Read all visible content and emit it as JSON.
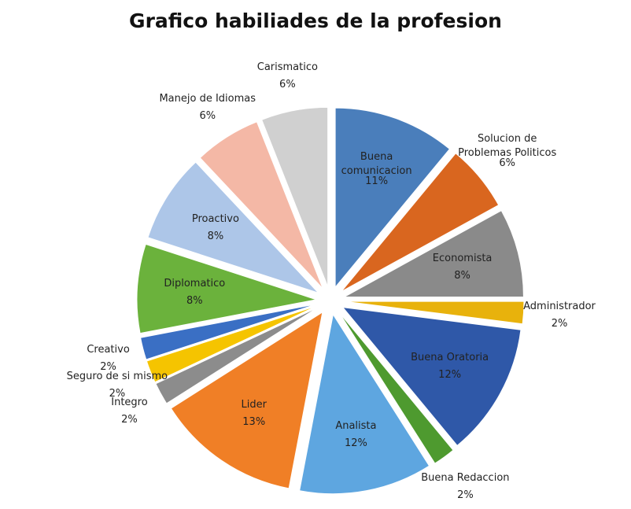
{
  "chart_data": {
    "type": "pie",
    "title": "Grafico habiliades de la profesion",
    "categories": [
      "Buena comunicacion",
      "Solucion de Problemas Politicos",
      "Economista",
      "Administrador",
      "Buena Oratoria",
      "Buena Redaccion",
      "Analista",
      "Lider",
      "Integro",
      "Seguro de si mismo",
      "Creativo",
      "Diplomatico",
      "Proactivo",
      "Manejo de Idiomas",
      "Carismatico"
    ],
    "values": [
      11,
      6,
      8,
      2,
      12,
      2,
      12,
      13,
      2,
      2,
      2,
      8,
      8,
      6,
      6
    ],
    "value_labels": [
      "11%",
      "6%",
      "8%",
      "2%",
      "12%",
      "2%",
      "12%",
      "13%",
      "2%",
      "2%",
      "2%",
      "8%",
      "8%",
      "6%",
      "6%"
    ],
    "colors": [
      "#4a7ebb",
      "#d9661f",
      "#8a8a8a",
      "#e8b20c",
      "#2f58a8",
      "#4e9a2f",
      "#5ea6e0",
      "#f07f26",
      "#8c8c8c",
      "#f5c400",
      "#3a6fc4",
      "#6bb23c",
      "#adc6e8",
      "#f4b8a6",
      "#d0d0d0"
    ]
  }
}
